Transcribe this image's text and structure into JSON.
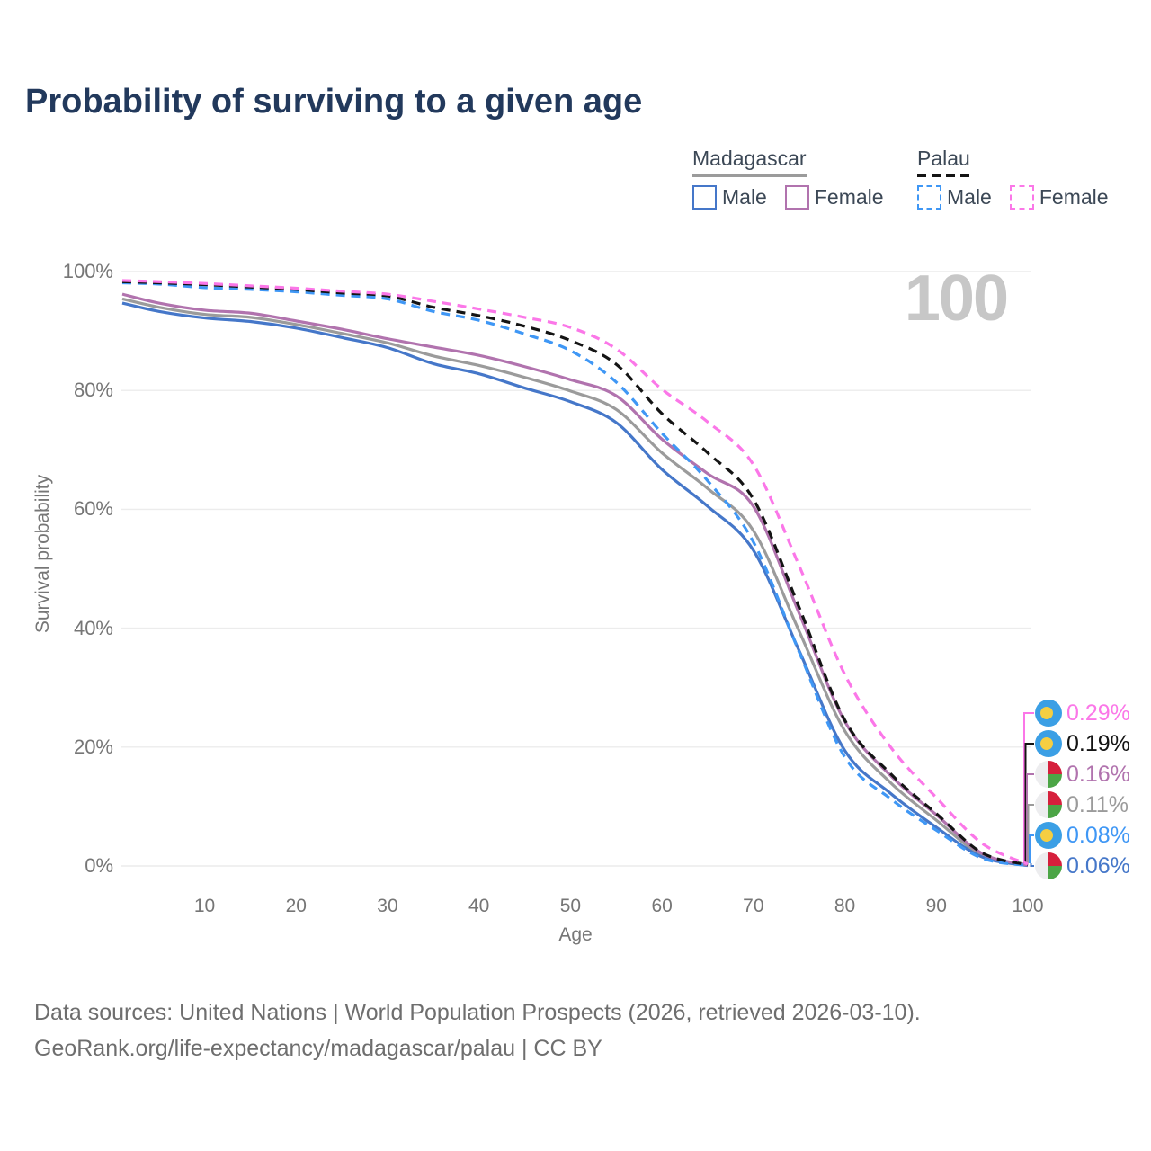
{
  "title": "Probability of surviving to a given age",
  "watermark_age": "100",
  "legend": {
    "groups": [
      {
        "name": "Madagascar",
        "line_style": "solid",
        "underline_color": "#9b9b9b",
        "items": [
          {
            "label": "Male",
            "color": "#4577c9",
            "dashed": false
          },
          {
            "label": "Female",
            "color": "#b173ae",
            "dashed": false
          }
        ]
      },
      {
        "name": "Palau",
        "line_style": "dashed",
        "underline_color": "#141414",
        "items": [
          {
            "label": "Male",
            "color": "#3f97f5",
            "dashed": true
          },
          {
            "label": "Female",
            "color": "#fb77e8",
            "dashed": true
          }
        ]
      }
    ]
  },
  "chart_data": {
    "type": "line",
    "title": "Probability of surviving to a given age",
    "xlabel": "Age",
    "ylabel": "Survival probability",
    "xlim": [
      1,
      100
    ],
    "ylim": [
      0,
      100
    ],
    "grid": "horizontal",
    "x_ticks": [
      10,
      20,
      30,
      40,
      50,
      60,
      70,
      80,
      90,
      100
    ],
    "y_ticks": [
      0,
      20,
      40,
      60,
      80,
      100
    ],
    "y_tick_labels": [
      "0%",
      "20%",
      "40%",
      "60%",
      "80%",
      "100%"
    ],
    "x": [
      1,
      5,
      10,
      15,
      20,
      25,
      30,
      35,
      40,
      45,
      50,
      55,
      60,
      65,
      70,
      75,
      80,
      85,
      90,
      95,
      100
    ],
    "series": [
      {
        "name": "Palau Female",
        "country": "Palau",
        "sex": "Female",
        "color": "#fb77e8",
        "dashed": true,
        "flag": "palau",
        "end_label": "0.29%",
        "values": [
          98.5,
          98.3,
          98.0,
          97.6,
          97.2,
          96.7,
          96.2,
          95.0,
          93.7,
          92.3,
          90.6,
          87.0,
          80.2,
          74.7,
          67.5,
          50.5,
          32.2,
          20.0,
          11.5,
          3.8,
          0.29
        ]
      },
      {
        "name": "Palau",
        "country": "Palau",
        "sex": "Both",
        "color": "#141414",
        "dashed": true,
        "flag": "palau",
        "end_label": "0.19%",
        "values": [
          98.3,
          98.1,
          97.8,
          97.4,
          97.0,
          96.4,
          95.9,
          94.0,
          92.6,
          90.8,
          88.4,
          84.4,
          76.1,
          69.5,
          61.7,
          43.5,
          24.5,
          15.5,
          8.8,
          2.2,
          0.19
        ]
      },
      {
        "name": "Madagascar Female",
        "country": "Madagascar",
        "sex": "Female",
        "color": "#b173ae",
        "dashed": false,
        "flag": "madagascar",
        "end_label": "0.16%",
        "values": [
          96.2,
          94.7,
          93.5,
          93.0,
          91.7,
          90.3,
          88.7,
          87.3,
          85.9,
          84.0,
          81.8,
          79.1,
          71.8,
          66.0,
          60.5,
          42.5,
          24.3,
          15.2,
          8.6,
          2.1,
          0.16
        ]
      },
      {
        "name": "Madagascar",
        "country": "Madagascar",
        "sex": "Both",
        "color": "#9b9b9b",
        "dashed": false,
        "flag": "madagascar",
        "end_label": "0.11%",
        "values": [
          95.4,
          94.0,
          92.8,
          92.3,
          91.1,
          89.6,
          88.0,
          85.8,
          84.2,
          82.2,
          79.9,
          76.8,
          69.5,
          63.5,
          56.4,
          39.5,
          22.7,
          14.0,
          7.7,
          1.8,
          0.11
        ]
      },
      {
        "name": "Palau Male",
        "country": "Palau",
        "sex": "Male",
        "color": "#3f97f5",
        "dashed": true,
        "flag": "palau",
        "end_label": "0.08%",
        "values": [
          98.1,
          97.9,
          97.3,
          97.0,
          96.6,
          96.0,
          95.4,
          93.3,
          91.8,
          89.5,
          86.7,
          81.4,
          72.8,
          64.8,
          54.5,
          36.0,
          18.3,
          11.3,
          6.0,
          1.3,
          0.08
        ]
      },
      {
        "name": "Madagascar Male",
        "country": "Madagascar",
        "sex": "Male",
        "color": "#4577c9",
        "dashed": false,
        "flag": "madagascar",
        "end_label": "0.06%",
        "values": [
          94.7,
          93.3,
          92.2,
          91.6,
          90.5,
          88.9,
          87.2,
          84.5,
          82.8,
          80.4,
          78.1,
          74.6,
          66.7,
          60.5,
          53.1,
          36.2,
          19.4,
          12.2,
          6.5,
          1.5,
          0.06
        ]
      }
    ]
  },
  "colors": {
    "grid": "#ececec",
    "tick_text": "#767676",
    "title_text": "#22395c",
    "watermark": "#c7c7c7",
    "footer_text": "#6e6e6e"
  },
  "flags": {
    "palau": {
      "field": "#3b9fe5",
      "moon": "#f5ce42"
    },
    "madagascar": {
      "white": "#ededef",
      "red": "#d6203c",
      "green": "#4ca546"
    }
  },
  "footer": {
    "line1": "Data sources: United Nations | World Population Prospects (2026, retrieved 2026-03-10).",
    "line2": "GeoRank.org/life-expectancy/madagascar/palau | CC BY"
  }
}
